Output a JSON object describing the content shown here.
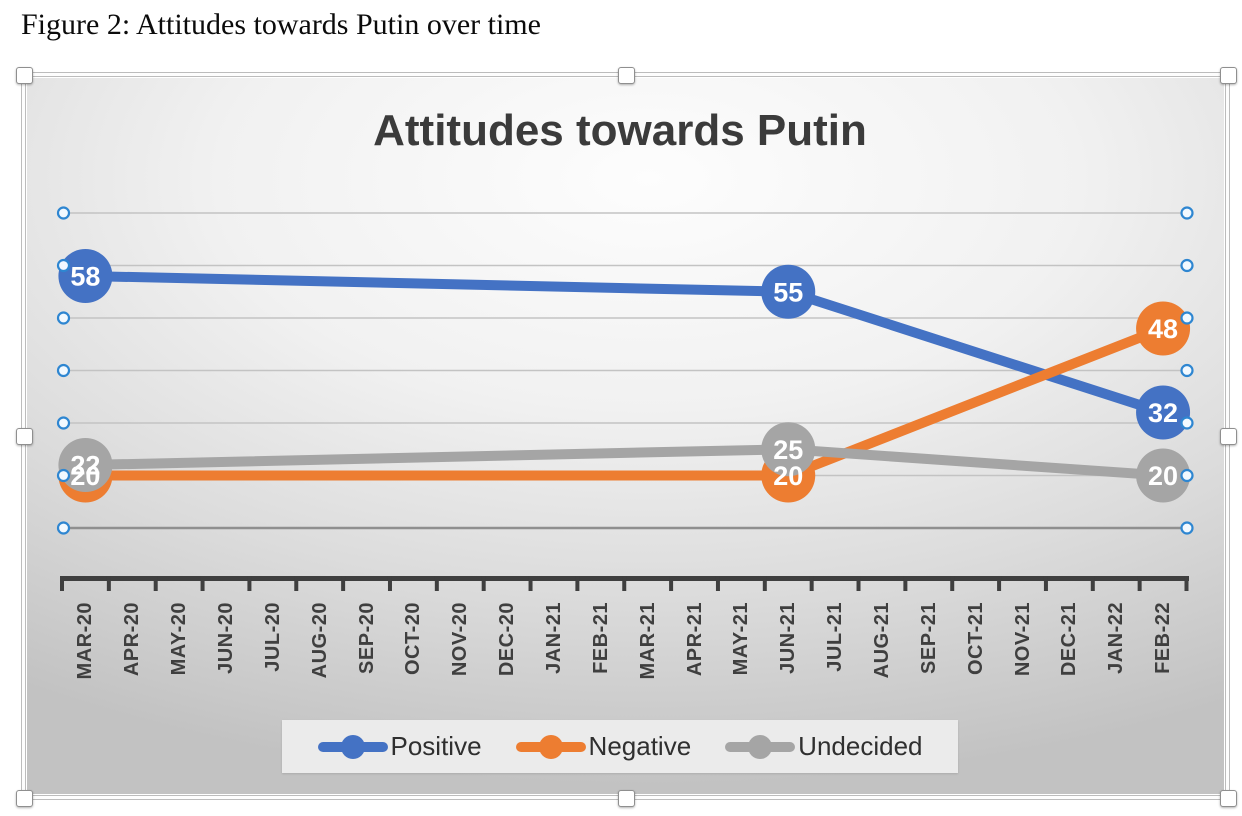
{
  "figure_caption": "Figure 2: Attitudes towards Putin over time",
  "chart_data": {
    "type": "line",
    "title": "Attitudes towards Putin",
    "x_categories": [
      "MAR-20",
      "APR-20",
      "MAY-20",
      "JUN-20",
      "JUL-20",
      "AUG-20",
      "SEP-20",
      "OCT-20",
      "NOV-20",
      "DEC-20",
      "JAN-21",
      "FEB-21",
      "MAR-21",
      "APR-21",
      "MAY-21",
      "JUN-21",
      "JUL-21",
      "AUG-21",
      "SEP-21",
      "OCT-21",
      "NOV-21",
      "DEC-21",
      "JAN-22",
      "FEB-22"
    ],
    "series": [
      {
        "name": "Positive",
        "color": "#4472C4",
        "points": [
          {
            "x": "MAR-20",
            "y": 58
          },
          {
            "x": "JUN-21",
            "y": 55
          },
          {
            "x": "FEB-22",
            "y": 32
          }
        ]
      },
      {
        "name": "Negative",
        "color": "#ED7D31",
        "points": [
          {
            "x": "MAR-20",
            "y": 20
          },
          {
            "x": "JUN-21",
            "y": 20
          },
          {
            "x": "FEB-22",
            "y": 48
          }
        ]
      },
      {
        "name": "Undecided",
        "color": "#A5A5A5",
        "points": [
          {
            "x": "MAR-20",
            "y": 22
          },
          {
            "x": "JUN-21",
            "y": 25
          },
          {
            "x": "FEB-22",
            "y": 20
          }
        ]
      }
    ],
    "ylim": [
      0,
      75
    ],
    "gridline_values": [
      10,
      20,
      30,
      40,
      50,
      60,
      70
    ],
    "gridline_color": "#c3c3c3",
    "gridline_dark_value": 10,
    "gridline_dark_color": "#8f8f8f",
    "axis_color": "#3f3f3f",
    "grid_handle_ring_color": "#2e86d1",
    "legend_position": "bottom",
    "data_labels_shown": true
  }
}
